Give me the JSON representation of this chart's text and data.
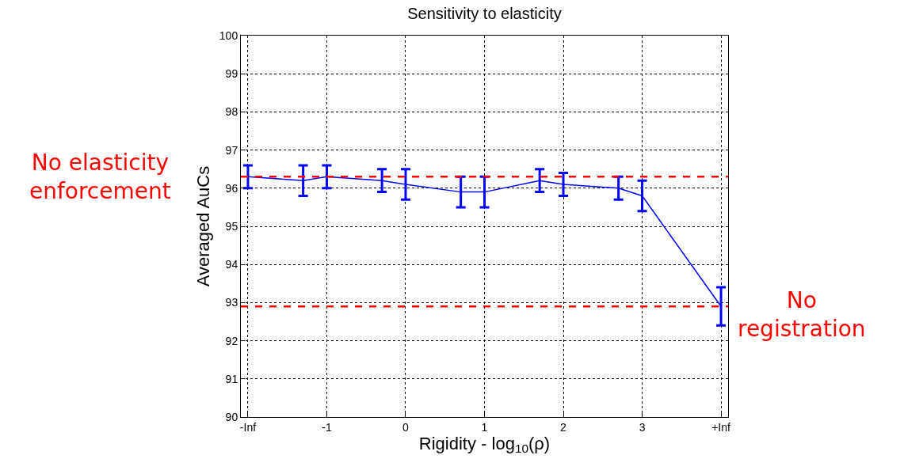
{
  "chart_data": {
    "type": "line",
    "title": "Sensitivity to elasticity",
    "xlabel": "Rigidity - log$_{10}$(ρ)",
    "ylabel": "Averaged AuCs",
    "x": [
      -2,
      -1.3,
      -1,
      -0.3,
      0,
      0.7,
      1,
      1.7,
      2,
      2.7,
      3,
      4
    ],
    "series": [
      {
        "color": "#0000ff",
        "values": [
          96.3,
          96.2,
          96.3,
          96.2,
          96.1,
          95.9,
          95.9,
          96.2,
          96.1,
          96.0,
          95.8,
          92.9
        ],
        "errors": [
          [
            96.0,
            96.6
          ],
          [
            95.8,
            96.6
          ],
          [
            96.0,
            96.6
          ],
          [
            95.9,
            96.5
          ],
          [
            95.7,
            96.5
          ],
          [
            95.5,
            96.3
          ],
          [
            95.5,
            96.3
          ],
          [
            95.9,
            96.5
          ],
          [
            95.8,
            96.4
          ],
          [
            95.7,
            96.3
          ],
          [
            95.4,
            96.2
          ],
          [
            92.4,
            93.4
          ]
        ]
      }
    ],
    "xlim": [
      -2.09,
      4.09
    ],
    "xticks": [
      {
        "value": -2,
        "label": "-Inf"
      },
      -1,
      0,
      1,
      2,
      3,
      {
        "value": 4,
        "label": "+Inf"
      }
    ],
    "ylim": [
      90,
      100
    ],
    "yticks": [
      90,
      91,
      92,
      93,
      94,
      95,
      96,
      97,
      98,
      99,
      100
    ],
    "ref_lines": [
      {
        "axis": "y",
        "value": 96.3,
        "label": "No elasticity enforcement",
        "color": "#ff0000",
        "line_style": "dashed"
      },
      {
        "axis": "y",
        "value": 92.9,
        "label": "No registration",
        "color": "#ff0000",
        "line_style": "dashed"
      }
    ],
    "grid": true,
    "marker": "none",
    "line_style": "solid"
  }
}
